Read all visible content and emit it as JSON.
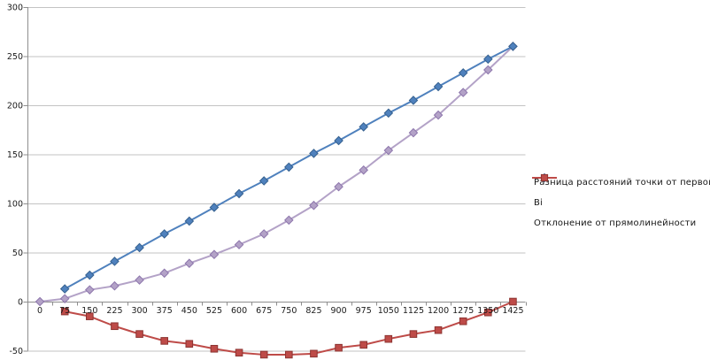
{
  "chart_data": {
    "type": "line",
    "title": "",
    "xlabel": "",
    "ylabel": "",
    "categories": [
      0,
      75,
      150,
      225,
      300,
      375,
      450,
      525,
      600,
      675,
      750,
      825,
      900,
      975,
      1050,
      1125,
      1200,
      1275,
      1350,
      1425
    ],
    "series": [
      {
        "name": "Разница расстояний точки  от первой",
        "marker": "diamond",
        "color": "#B3A2C7",
        "border": "#8D76AC",
        "values": [
          0,
          3,
          12,
          16,
          22,
          29,
          39,
          48,
          58,
          69,
          83,
          98,
          117,
          134,
          154,
          172,
          190,
          213,
          236,
          260
        ]
      },
      {
        "name": "Bi",
        "marker": "diamond",
        "color": "#4F81BD",
        "border": "#36618F",
        "values": [
          null,
          13,
          27,
          41,
          55,
          69,
          82,
          96,
          110,
          123,
          137,
          151,
          164,
          178,
          192,
          205,
          219,
          233,
          247,
          260
        ]
      },
      {
        "name": "Отклонение от прямолинейности",
        "marker": "square",
        "color": "#BE4B48",
        "border": "#8C3431",
        "values": [
          null,
          -10,
          -15,
          -25,
          -33,
          -40,
          -43,
          -48,
          -52,
          -54,
          -54,
          -53,
          -47,
          -44,
          -38,
          -33,
          -29,
          -20,
          -11,
          0
        ]
      }
    ],
    "y_ticks": [
      300,
      250,
      200,
      150,
      100,
      50,
      0,
      -50
    ],
    "ylim": [
      -50,
      300
    ],
    "grid": true,
    "legend_position": "right"
  },
  "style": {
    "grid_color": "#C3C3C3",
    "axis_color": "#8E8E8E",
    "tick_label_color": "#1A1A1A",
    "background": "#FFFFFF",
    "line_width": 2
  }
}
